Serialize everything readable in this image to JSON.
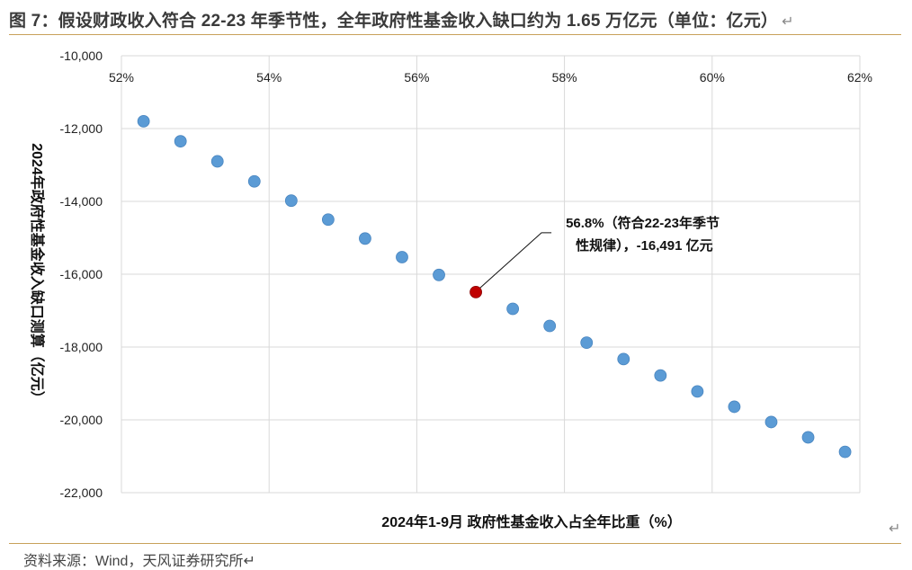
{
  "header": {
    "title": "图 7：假设财政收入符合 22-23 年季节性，全年政府性基金收入缺口约为 1.65 万亿元（单位：亿元）",
    "return_symbol": "↵"
  },
  "footer": {
    "source": "资料来源：Wind，天风证券研究所↵",
    "corner_return_symbol": "↵"
  },
  "chart_data": {
    "type": "scatter",
    "title": "假设财政收入符合 22-23 年季节性，全年政府性基金收入缺口约为 1.65 万亿元",
    "xlabel": "2024年1-9月 政府性基金收入占全年比重（%）",
    "ylabel": "2024年政府性基金收入缺口测算（亿元）",
    "xlim": [
      52,
      62
    ],
    "ylim": [
      -22000,
      -10000
    ],
    "x_ticks": [
      52,
      54,
      56,
      58,
      60,
      62
    ],
    "x_tick_labels": [
      "52%",
      "54%",
      "56%",
      "58%",
      "60%",
      "62%"
    ],
    "y_ticks": [
      -10000,
      -12000,
      -14000,
      -16000,
      -18000,
      -20000,
      -22000
    ],
    "y_tick_labels": [
      "-10,000",
      "-12,000",
      "-14,000",
      "-16,000",
      "-18,000",
      "-20,000",
      "-22,000"
    ],
    "x_axis_position": "top",
    "grid": true,
    "colors": {
      "points": "#5b9bd5",
      "highlight": "#c00000",
      "grid": "#d9d9d9"
    },
    "series": [
      {
        "name": "缺口测算",
        "x": [
          52.3,
          52.8,
          53.3,
          53.8,
          54.3,
          54.8,
          55.3,
          55.8,
          56.3,
          57.3,
          57.8,
          58.3,
          58.8,
          59.3,
          59.8,
          60.3,
          60.8,
          61.3,
          61.8
        ],
        "y": [
          -11800,
          -12350,
          -12900,
          -13450,
          -13980,
          -14500,
          -15020,
          -15530,
          -16020,
          -16950,
          -17420,
          -17880,
          -18330,
          -18780,
          -19220,
          -19640,
          -20060,
          -20480,
          -20880
        ]
      }
    ],
    "highlight": {
      "x": 56.8,
      "y": -16491,
      "label_line1": "56.8%（符合22-23年季节",
      "label_line2": "性规律），-16,491 亿元"
    }
  }
}
